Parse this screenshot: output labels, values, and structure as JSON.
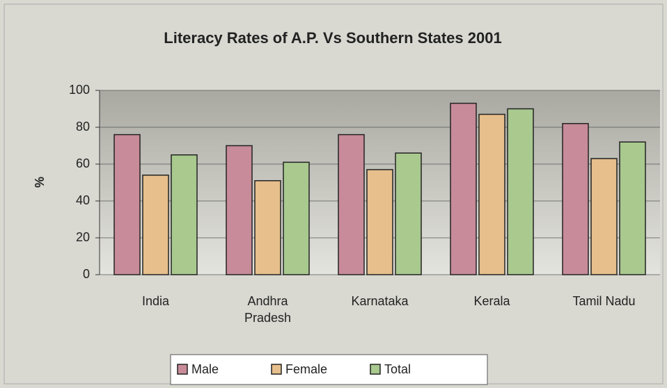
{
  "chart_data": {
    "type": "bar",
    "title": "Literacy Rates of A.P. Vs Southern States 2001",
    "y_label": "%",
    "categories": [
      "India",
      "Andhra Pradesh",
      "Karnataka",
      "Kerala",
      "Tamil Nadu"
    ],
    "series": [
      {
        "name": "Male",
        "color": "#c88b99",
        "values": [
          76,
          70,
          76,
          93,
          82
        ]
      },
      {
        "name": "Female",
        "color": "#e6bf8c",
        "values": [
          54,
          51,
          57,
          87,
          63
        ]
      },
      {
        "name": "Total",
        "color": "#a9c98f",
        "values": [
          65,
          61,
          66,
          90,
          72
        ]
      }
    ],
    "ylim": [
      0,
      100
    ],
    "yticks": [
      0,
      20,
      40,
      60,
      80,
      100
    ],
    "grid": true,
    "legend": "bottom"
  }
}
